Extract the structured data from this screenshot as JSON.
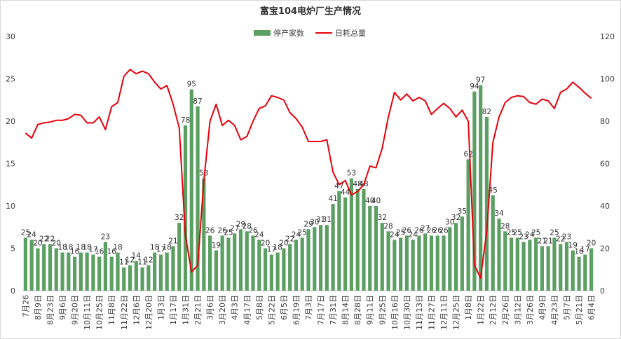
{
  "chart_data": {
    "type": "bar",
    "title": "富宝104电炉厂生产情况",
    "categories": [
      "7月26",
      null,
      "8月9日",
      null,
      "8月23日",
      null,
      "9月6日",
      null,
      "9月20日",
      null,
      "10月11日",
      null,
      "10月25日",
      null,
      "11月8日",
      null,
      "11月22日",
      null,
      "12月6日",
      null,
      "12月20日",
      null,
      "1月3日",
      null,
      "1月17日",
      null,
      "1月31日",
      null,
      "2月21日",
      null,
      "3月6日",
      null,
      "3月20日",
      null,
      "4月3日",
      null,
      "4月17日",
      null,
      "5月8日",
      null,
      "5月22日",
      null,
      "6月5日",
      null,
      "6月19日",
      null,
      "7月3日",
      null,
      "7月17日",
      null,
      "7月31日",
      null,
      "8月14日",
      null,
      "8月28日",
      null,
      "9月11日",
      null,
      "9月25日",
      null,
      "10月16日",
      null,
      "10月30日",
      null,
      "11月13日",
      null,
      "11月27日",
      null,
      "12月11日",
      null,
      "12月25日",
      null,
      "1月8日",
      null,
      "1月22日",
      null,
      "2月12日",
      null,
      "2月26日",
      null,
      "3月12日",
      null,
      "3月26日",
      null,
      "4月9日",
      null,
      "4月23日",
      null,
      "5月7日",
      null,
      "5月21日",
      null,
      "6月4日"
    ],
    "series": [
      {
        "name": "停产家数",
        "type": "bar",
        "axis": "y2",
        "color": "#5b9f63",
        "values": [
          25,
          24,
          20,
          22,
          22,
          20,
          18,
          18,
          16,
          18,
          18,
          17,
          16,
          23,
          16,
          18,
          11,
          12,
          14,
          11,
          12,
          18,
          17,
          18,
          21,
          32,
          78,
          95,
          87,
          53,
          26,
          19,
          26,
          25,
          27,
          29,
          28,
          26,
          24,
          20,
          17,
          18,
          20,
          22,
          24,
          25,
          29,
          30,
          31,
          31,
          41,
          47,
          44,
          53,
          48,
          48,
          40,
          40,
          32,
          28,
          24,
          25,
          26,
          24,
          26,
          27,
          26,
          26,
          26,
          30,
          32,
          35,
          62,
          94,
          97,
          82,
          45,
          34,
          28,
          25,
          25,
          23,
          24,
          25,
          21,
          21,
          25,
          22,
          23,
          19,
          16,
          17,
          20
        ]
      },
      {
        "name": "日耗总量",
        "type": "line",
        "color": "#e8000b",
        "values": [
          18.6,
          18.0,
          19.6,
          19.8,
          19.9,
          20.1,
          20.1,
          20.3,
          20.8,
          20.7,
          19.8,
          19.8,
          20.5,
          19.0,
          21.7,
          22.2,
          25.3,
          26.1,
          25.6,
          25.9,
          25.6,
          24.6,
          23.8,
          24.2,
          22.0,
          19.2,
          6.5,
          2.2,
          3.0,
          13.0,
          20.0,
          22.0,
          19.5,
          20.1,
          19.5,
          17.8,
          18.2,
          20.0,
          21.5,
          21.8,
          23.0,
          22.8,
          22.5,
          21.0,
          20.3,
          19.3,
          17.6,
          17.6,
          17.6,
          17.8,
          14.0,
          12.5,
          13.0,
          11.3,
          11.7,
          12.5,
          14.7,
          14.5,
          16.8,
          20.5,
          23.4,
          22.5,
          23.2,
          22.4,
          22.8,
          22.4,
          20.8,
          21.5,
          22.1,
          21.5,
          20.5,
          21.3,
          20.0,
          3.0,
          1.5,
          7.0,
          17.5,
          20.5,
          22.2,
          22.8,
          23.0,
          22.9,
          22.2,
          22.0,
          22.6,
          22.4,
          21.5,
          23.4,
          23.8,
          24.6,
          24.0,
          23.3,
          22.7
        ]
      }
    ],
    "ylim": [
      0,
      30
    ],
    "yticks": [
      0,
      5,
      10,
      15,
      20,
      25,
      30
    ],
    "y2lim": [
      0,
      120
    ],
    "y2ticks": [
      0,
      20,
      40,
      60,
      80,
      100,
      120
    ],
    "legend": "top"
  }
}
